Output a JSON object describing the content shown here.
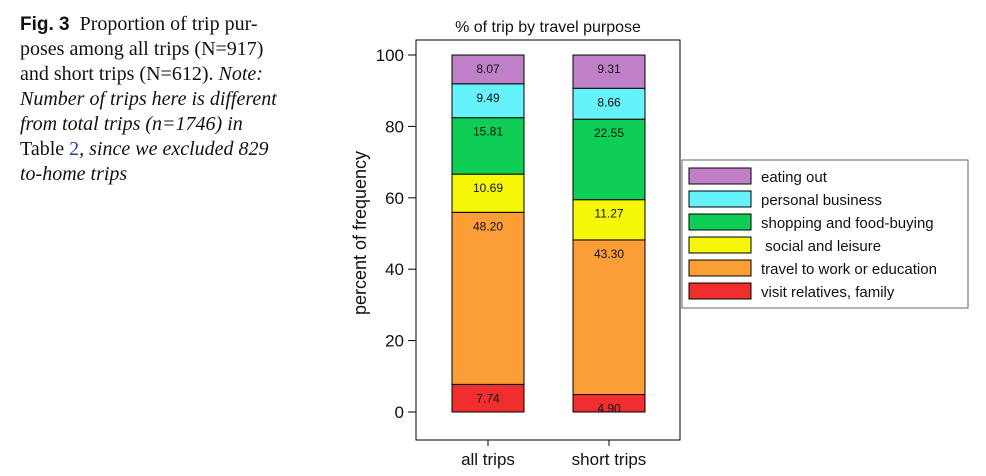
{
  "caption": {
    "fig_label": "Fig. 3",
    "line1_text": "Proportion of trip pur-",
    "line2": "poses among all trips (N=917)",
    "line3_a": "and short trips (N=612). ",
    "line3_note": "Note:",
    "line4": "Number of trips here is different",
    "line5": "from total trips (n=1746) in",
    "line6_a": "Table ",
    "line6_link": "2",
    "line6_b": ", since we excluded 829",
    "line7": "to-home trips"
  },
  "colors": {
    "eating out": "#c080c8",
    "personal business": "#66f2fb",
    "shopping and food-buying": "#0fce55",
    "social and leisure": "#f7f708",
    "travel to work or education": "#fa9e35",
    "visit relatives, family": "#f02e2e"
  },
  "chart_data": {
    "type": "bar",
    "stacked": true,
    "title": "% of trip by travel purpose",
    "xlabel": "",
    "ylabel": "percent of frequency",
    "categories": [
      "all trips",
      "short trips"
    ],
    "ylim": [
      0,
      100
    ],
    "yticks": [
      "0",
      "20",
      "40",
      "60",
      "80",
      "100"
    ],
    "series": [
      {
        "name": "visit relatives, family",
        "values": [
          7.74,
          4.9
        ],
        "labels": [
          "7.74",
          "4.90"
        ]
      },
      {
        "name": "travel to work or education",
        "values": [
          48.2,
          43.3
        ],
        "labels": [
          "48.20",
          "43.30"
        ]
      },
      {
        "name": "social and leisure",
        "values": [
          10.69,
          11.27
        ],
        "labels": [
          "10.69",
          "11.27"
        ]
      },
      {
        "name": "shopping and food-buying",
        "values": [
          15.81,
          22.55
        ],
        "labels": [
          "15.81",
          "22.55"
        ]
      },
      {
        "name": "personal business",
        "values": [
          9.49,
          8.66
        ],
        "labels": [
          "9.49",
          "8.66"
        ]
      },
      {
        "name": "eating out",
        "values": [
          8.07,
          9.31
        ],
        "labels": [
          "8.07",
          "9.31"
        ]
      }
    ],
    "legend": {
      "position": "right",
      "entries": [
        "eating out",
        "personal business",
        "shopping and food-buying",
        " social and leisure",
        "travel to work or education",
        "visit relatives, family"
      ]
    },
    "grid": false
  }
}
